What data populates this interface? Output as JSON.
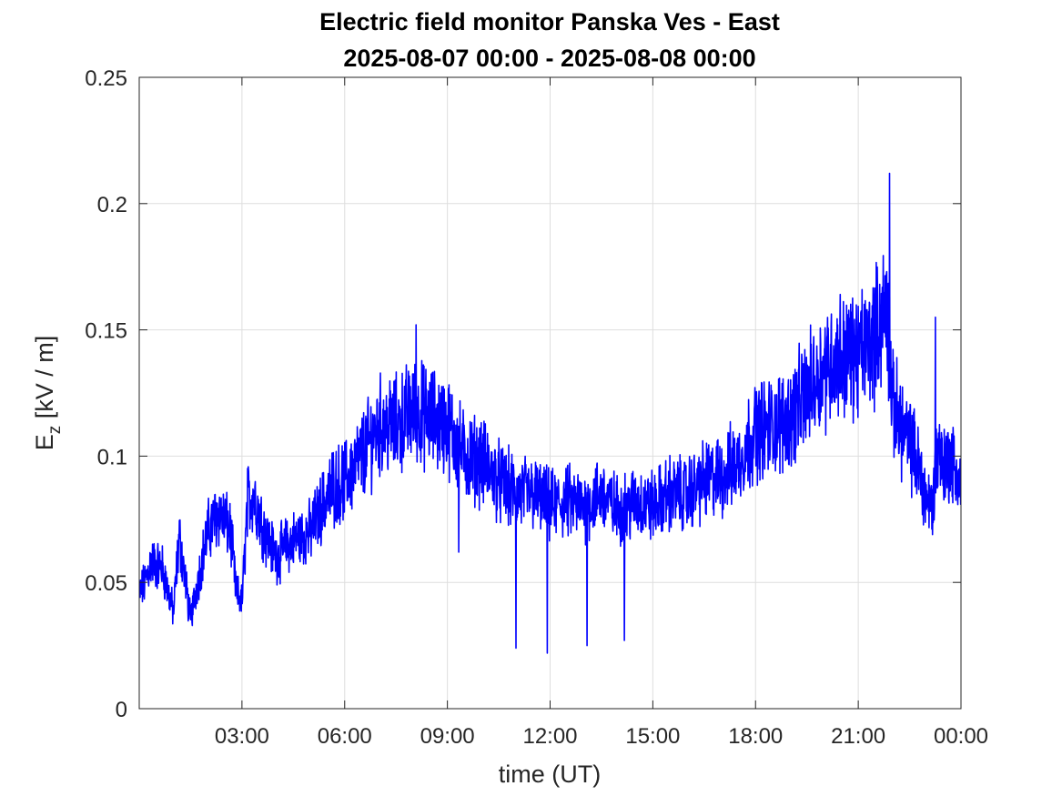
{
  "chart_data": {
    "type": "line",
    "title": "Electric field monitor Panska Ves - East",
    "subtitle": "2025-08-07 00:00 - 2025-08-08 00:00",
    "xlabel": "time (UT)",
    "ylabel": {
      "main": "E",
      "subscript": "z",
      "units": " [kV / m]"
    },
    "xlim": [
      "2025-08-07 00:00",
      "2025-08-08 00:00"
    ],
    "ylim": [
      0,
      0.25
    ],
    "grid": true,
    "x_ticks": [
      {
        "label": "03:00",
        "hour": 3
      },
      {
        "label": "06:00",
        "hour": 6
      },
      {
        "label": "09:00",
        "hour": 9
      },
      {
        "label": "12:00",
        "hour": 12
      },
      {
        "label": "15:00",
        "hour": 15
      },
      {
        "label": "18:00",
        "hour": 18
      },
      {
        "label": "21:00",
        "hour": 21
      },
      {
        "label": "00:00",
        "hour": 24
      }
    ],
    "y_ticks": [
      {
        "label": "0",
        "value": 0
      },
      {
        "label": "0.05",
        "value": 0.05
      },
      {
        "label": "0.1",
        "value": 0.1
      },
      {
        "label": "0.15",
        "value": 0.15
      },
      {
        "label": "0.2",
        "value": 0.2
      },
      {
        "label": "0.25",
        "value": 0.25
      }
    ],
    "series": [
      {
        "color": "#0000ff",
        "noise_fraction": 0.14,
        "x": [
          "2025-08-07 00:00",
          "2025-08-07 00:10",
          "2025-08-07 00:20",
          "2025-08-07 00:40",
          "2025-08-07 01:00",
          "2025-08-07 01:10",
          "2025-08-07 01:20",
          "2025-08-07 01:30",
          "2025-08-07 01:40",
          "2025-08-07 02:00",
          "2025-08-07 02:20",
          "2025-08-07 02:40",
          "2025-08-07 02:50",
          "2025-08-07 03:00",
          "2025-08-07 03:10",
          "2025-08-07 03:20",
          "2025-08-07 03:40",
          "2025-08-07 04:00",
          "2025-08-07 04:20",
          "2025-08-07 04:40",
          "2025-08-07 05:00",
          "2025-08-07 05:20",
          "2025-08-07 05:40",
          "2025-08-07 06:00",
          "2025-08-07 06:30",
          "2025-08-07 07:00",
          "2025-08-07 07:30",
          "2025-08-07 08:00",
          "2025-08-07 08:30",
          "2025-08-07 09:00",
          "2025-08-07 09:30",
          "2025-08-07 10:00",
          "2025-08-07 10:30",
          "2025-08-07 11:00",
          "2025-08-07 11:30",
          "2025-08-07 12:00",
          "2025-08-07 12:30",
          "2025-08-07 13:00",
          "2025-08-07 13:30",
          "2025-08-07 14:00",
          "2025-08-07 14:30",
          "2025-08-07 15:00",
          "2025-08-07 15:30",
          "2025-08-07 16:00",
          "2025-08-07 16:30",
          "2025-08-07 17:00",
          "2025-08-07 17:30",
          "2025-08-07 18:00",
          "2025-08-07 18:30",
          "2025-08-07 19:00",
          "2025-08-07 19:30",
          "2025-08-07 20:00",
          "2025-08-07 20:30",
          "2025-08-07 21:00",
          "2025-08-07 21:30",
          "2025-08-07 21:50",
          "2025-08-07 22:00",
          "2025-08-07 22:20",
          "2025-08-07 22:40",
          "2025-08-07 23:00",
          "2025-08-07 23:10",
          "2025-08-07 23:20",
          "2025-08-07 23:30",
          "2025-08-07 23:40",
          "2025-08-08 00:00"
        ],
        "y": [
          0.045,
          0.05,
          0.058,
          0.056,
          0.038,
          0.068,
          0.052,
          0.035,
          0.048,
          0.07,
          0.078,
          0.07,
          0.046,
          0.042,
          0.082,
          0.085,
          0.07,
          0.06,
          0.065,
          0.068,
          0.07,
          0.08,
          0.088,
          0.09,
          0.1,
          0.112,
          0.112,
          0.118,
          0.115,
          0.112,
          0.1,
          0.098,
          0.09,
          0.085,
          0.085,
          0.08,
          0.082,
          0.08,
          0.085,
          0.078,
          0.082,
          0.08,
          0.085,
          0.085,
          0.09,
          0.092,
          0.098,
          0.11,
          0.112,
          0.115,
          0.125,
          0.135,
          0.14,
          0.14,
          0.148,
          0.16,
          0.12,
          0.11,
          0.1,
          0.083,
          0.08,
          0.105,
          0.095,
          0.1,
          0.088
        ]
      }
    ],
    "spikes": [
      {
        "x": "2025-08-07 11:00",
        "y": 0.024
      },
      {
        "x": "2025-08-07 11:55",
        "y": 0.022
      },
      {
        "x": "2025-08-07 13:05",
        "y": 0.025
      },
      {
        "x": "2025-08-07 14:10",
        "y": 0.027
      },
      {
        "x": "2025-08-07 09:20",
        "y": 0.062
      },
      {
        "x": "2025-08-07 21:55",
        "y": 0.212
      },
      {
        "x": "2025-08-07 23:15",
        "y": 0.155
      },
      {
        "x": "2025-08-07 08:05",
        "y": 0.152
      }
    ]
  }
}
